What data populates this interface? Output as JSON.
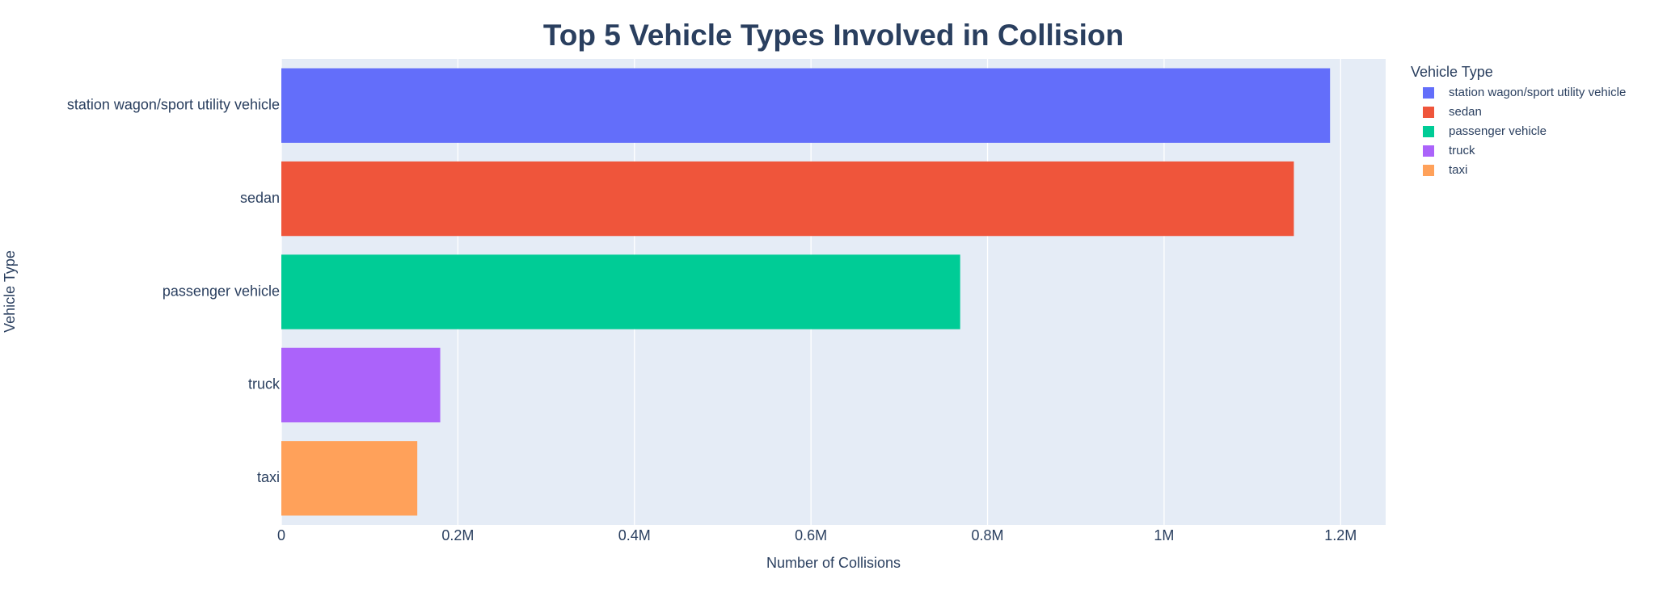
{
  "chart_data": {
    "type": "bar",
    "orientation": "horizontal",
    "title": "Top 5 Vehicle Types Involved in Collision",
    "xlabel": "Number of Collisions",
    "ylabel": "Vehicle Type",
    "legend_title": "Vehicle Type",
    "legend": "outside-right-top",
    "categories": [
      "station wagon/sport utility vehicle",
      "sedan",
      "passenger vehicle",
      "truck",
      "taxi"
    ],
    "values": [
      1188000,
      1147000,
      769000,
      180000,
      154000
    ],
    "colors": [
      "#636efa",
      "#ef553b",
      "#00cc96",
      "#ab63fa",
      "#ffa15a"
    ],
    "xlim": [
      0,
      1251000
    ],
    "xticks": [
      0,
      {
        "value": 200000,
        "label": "0.2M"
      },
      {
        "value": 400000,
        "label": "0.4M"
      },
      {
        "value": 600000,
        "label": "0.6M"
      },
      {
        "value": 800000,
        "label": "0.8M"
      },
      {
        "value": 1000000,
        "label": "1M"
      },
      {
        "value": 1200000,
        "label": "1.2M"
      }
    ],
    "grid": true
  }
}
